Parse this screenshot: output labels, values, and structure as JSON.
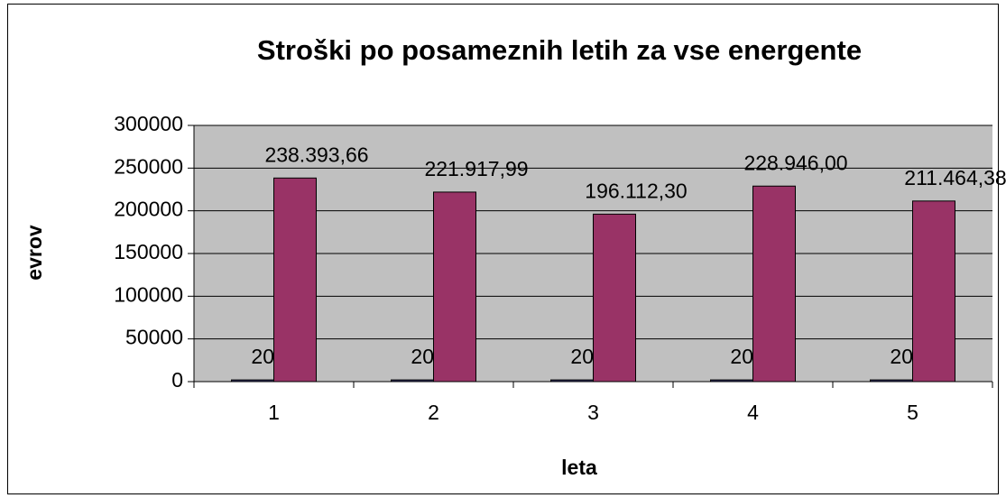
{
  "chart_data": {
    "type": "bar",
    "title": "Stroški po posameznih letih za vse energente",
    "x_label": "leta",
    "y_label": "evrov",
    "categories": [
      "1",
      "2",
      "3",
      "4",
      "5"
    ],
    "series": [
      {
        "color": "#333366",
        "values": [
          2005,
          2006,
          2007,
          2008,
          2009
        ]
      },
      {
        "color": "#993366",
        "values": [
          238393.66,
          221917.99,
          196112.3,
          228946.0,
          211464.38
        ],
        "value_labels": [
          "238.393,66",
          "221.917,99",
          "196.112,30",
          "228.946,00",
          "211.464,38"
        ]
      }
    ],
    "ylim": [
      0,
      300000
    ],
    "yticks": [
      0,
      50000,
      100000,
      150000,
      200000,
      250000,
      300000
    ],
    "grid": true,
    "plot_background": "#c0c0c0"
  }
}
